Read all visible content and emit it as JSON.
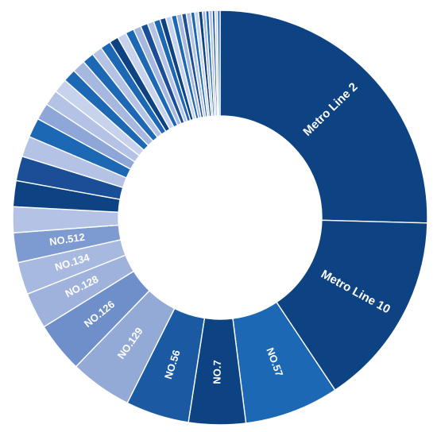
{
  "chart_data": {
    "type": "pie",
    "variant": "donut",
    "start": "12 o'clock, clockwise",
    "legend": "none",
    "slices": [
      {
        "label": "Metro Line 2",
        "value": 25.2,
        "color": "#0d4283"
      },
      {
        "label": "Metro Line 10",
        "value": 15.1,
        "color": "#0d4283"
      },
      {
        "label": "NO.57",
        "value": 7.3,
        "color": "#1c68b5"
      },
      {
        "label": "NO.7",
        "value": 4.4,
        "color": "#0d4283"
      },
      {
        "label": "NO.56",
        "value": 4.9,
        "color": "#1b5aa3"
      },
      {
        "label": "NO.129",
        "value": 4.8,
        "color": "#93a9d6"
      },
      {
        "label": "NO.126",
        "value": 3.9,
        "color": "#6f8fcb"
      },
      {
        "label": "NO.128",
        "value": 2.8,
        "color": "#9fb2dc"
      },
      {
        "label": "NO.134",
        "value": 2.5,
        "color": "#a8b9df"
      },
      {
        "label": "NO.512",
        "value": 2.3,
        "color": "#7d9ad1"
      },
      {
        "label": "",
        "value": 2.0,
        "color": "#b3c2e5"
      },
      {
        "label": "",
        "value": 2.0,
        "color": "#0d4283"
      },
      {
        "label": "",
        "value": 1.9,
        "color": "#1a4f98"
      },
      {
        "label": "",
        "value": 1.6,
        "color": "#b3c2e5"
      },
      {
        "label": "",
        "value": 1.5,
        "color": "#1c68b5"
      },
      {
        "label": "",
        "value": 1.3,
        "color": "#8fa7d8"
      },
      {
        "label": "",
        "value": 1.2,
        "color": "#b3c2e5"
      },
      {
        "label": "",
        "value": 1.1,
        "color": "#c7d2ec"
      },
      {
        "label": "",
        "value": 1.0,
        "color": "#1c68b5"
      },
      {
        "label": "",
        "value": 1.0,
        "color": "#a7b8e0"
      },
      {
        "label": "",
        "value": 0.9,
        "color": "#1c68b5"
      },
      {
        "label": "",
        "value": 0.8,
        "color": "#b3c2e5"
      },
      {
        "label": "",
        "value": 0.8,
        "color": "#1c68b5"
      },
      {
        "label": "",
        "value": 0.7,
        "color": "#0d4283"
      },
      {
        "label": "",
        "value": 0.7,
        "color": "#c7d2ec"
      },
      {
        "label": "",
        "value": 0.65,
        "color": "#1c68b5"
      },
      {
        "label": "",
        "value": 0.6,
        "color": "#a7b8e0"
      },
      {
        "label": "",
        "value": 0.55,
        "color": "#1a4f98"
      },
      {
        "label": "",
        "value": 0.5,
        "color": "#b3c2e5"
      },
      {
        "label": "",
        "value": 0.5,
        "color": "#1c68b5"
      },
      {
        "label": "",
        "value": 0.45,
        "color": "#0d4283"
      },
      {
        "label": "",
        "value": 0.45,
        "color": "#c7d2ec"
      },
      {
        "label": "",
        "value": 0.4,
        "color": "#1c68b5"
      },
      {
        "label": "",
        "value": 0.4,
        "color": "#a7b8e0"
      },
      {
        "label": "",
        "value": 0.35,
        "color": "#1a4f98"
      },
      {
        "label": "",
        "value": 0.35,
        "color": "#b3c2e5"
      },
      {
        "label": "",
        "value": 0.3,
        "color": "#1c68b5"
      },
      {
        "label": "",
        "value": 0.3,
        "color": "#c7d2ec"
      },
      {
        "label": "",
        "value": 0.3,
        "color": "#0d4283"
      },
      {
        "label": "",
        "value": 0.25,
        "color": "#a7b8e0"
      },
      {
        "label": "",
        "value": 0.25,
        "color": "#1c68b5"
      },
      {
        "label": "",
        "value": 0.25,
        "color": "#b3c2e5"
      },
      {
        "label": "",
        "value": 0.2,
        "color": "#1a4f98"
      },
      {
        "label": "",
        "value": 0.2,
        "color": "#c7d2ec"
      },
      {
        "label": "",
        "value": 0.2,
        "color": "#1c68b5"
      }
    ]
  }
}
